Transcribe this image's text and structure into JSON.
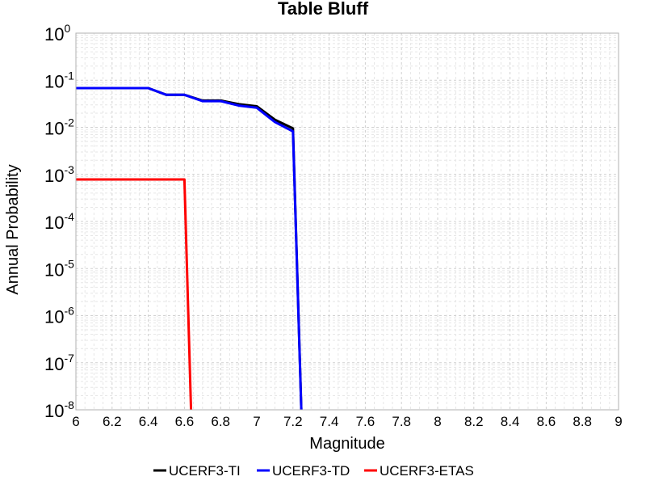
{
  "chart_data": {
    "type": "line",
    "title": "Table Bluff",
    "xlabel": "Magnitude",
    "ylabel": "Annual Probability",
    "xlim": [
      6,
      9
    ],
    "ylim": [
      1e-08,
      1
    ],
    "yscale": "log",
    "grid": true,
    "legend_position": "bottom",
    "x_ticks": [
      "6",
      "6.2",
      "6.4",
      "6.6",
      "6.8",
      "7",
      "7.2",
      "7.4",
      "7.6",
      "7.8",
      "8",
      "8.2",
      "8.4",
      "8.6",
      "8.8",
      "9"
    ],
    "y_ticks": [
      {
        "base": "10",
        "exp": "0",
        "value": 1
      },
      {
        "base": "10",
        "exp": "-1",
        "value": 0.1
      },
      {
        "base": "10",
        "exp": "-2",
        "value": 0.01
      },
      {
        "base": "10",
        "exp": "-3",
        "value": 0.001
      },
      {
        "base": "10",
        "exp": "-4",
        "value": 0.0001
      },
      {
        "base": "10",
        "exp": "-5",
        "value": 1e-05
      },
      {
        "base": "10",
        "exp": "-6",
        "value": 1e-06
      },
      {
        "base": "10",
        "exp": "-7",
        "value": 1e-07
      },
      {
        "base": "10",
        "exp": "-8",
        "value": 1e-08
      }
    ],
    "series": [
      {
        "name": "UCERF3-TI",
        "color": "#000000",
        "x": [
          6.0,
          6.1,
          6.2,
          6.3,
          6.4,
          6.5,
          6.6,
          6.7,
          6.8,
          6.9,
          7.0,
          7.1,
          7.2,
          7.25
        ],
        "y": [
          0.068,
          0.068,
          0.068,
          0.068,
          0.068,
          0.049,
          0.049,
          0.037,
          0.037,
          0.031,
          0.028,
          0.0145,
          0.0095,
          1e-09
        ]
      },
      {
        "name": "UCERF3-TD",
        "color": "#0000ff",
        "x": [
          6.0,
          6.1,
          6.2,
          6.3,
          6.4,
          6.5,
          6.6,
          6.7,
          6.8,
          6.9,
          7.0,
          7.1,
          7.2,
          7.25
        ],
        "y": [
          0.068,
          0.068,
          0.068,
          0.068,
          0.068,
          0.049,
          0.049,
          0.036,
          0.036,
          0.029,
          0.026,
          0.013,
          0.0082,
          1e-09
        ]
      },
      {
        "name": "UCERF3-ETAS",
        "color": "#ff0000",
        "x": [
          6.0,
          6.6,
          6.64
        ],
        "y": [
          0.00078,
          0.00078,
          1e-09
        ]
      }
    ]
  }
}
